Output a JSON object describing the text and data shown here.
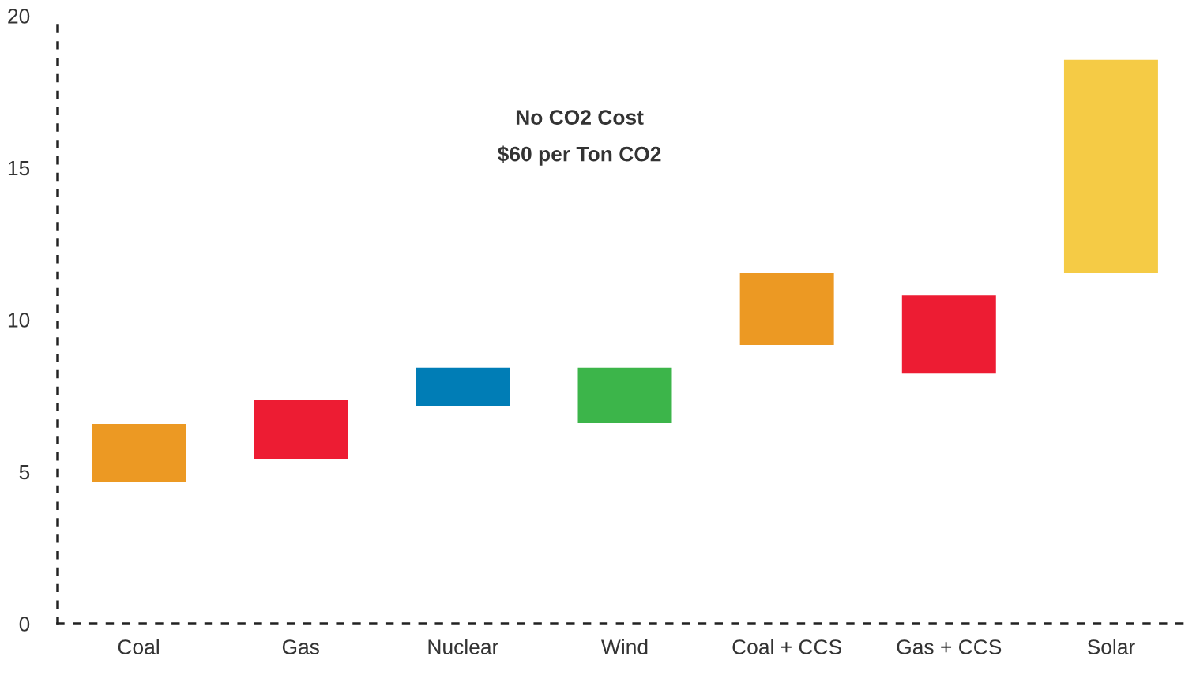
{
  "chart_data": {
    "type": "bar",
    "title": "No CO2 Cost",
    "subtitle": "$60 per Ton CO2",
    "categories": [
      "Coal",
      "Gas",
      "Nuclear",
      "Wind",
      "Coal + CCS",
      "Gas + CCS",
      "Solar"
    ],
    "base": [
      4.65,
      5.43,
      7.17,
      6.6,
      9.17,
      8.23,
      11.53
    ],
    "values": [
      1.92,
      1.92,
      1.25,
      1.82,
      2.36,
      2.57,
      7.02
    ],
    "colors": [
      "#ec9923",
      "#ed1c33",
      "#007db6",
      "#3cb54a",
      "#ec9923",
      "#ed1c33",
      "#f5cb45"
    ],
    "ylim": [
      0,
      20
    ],
    "yticks": [
      0,
      5,
      10,
      15,
      20
    ],
    "grid": false
  }
}
